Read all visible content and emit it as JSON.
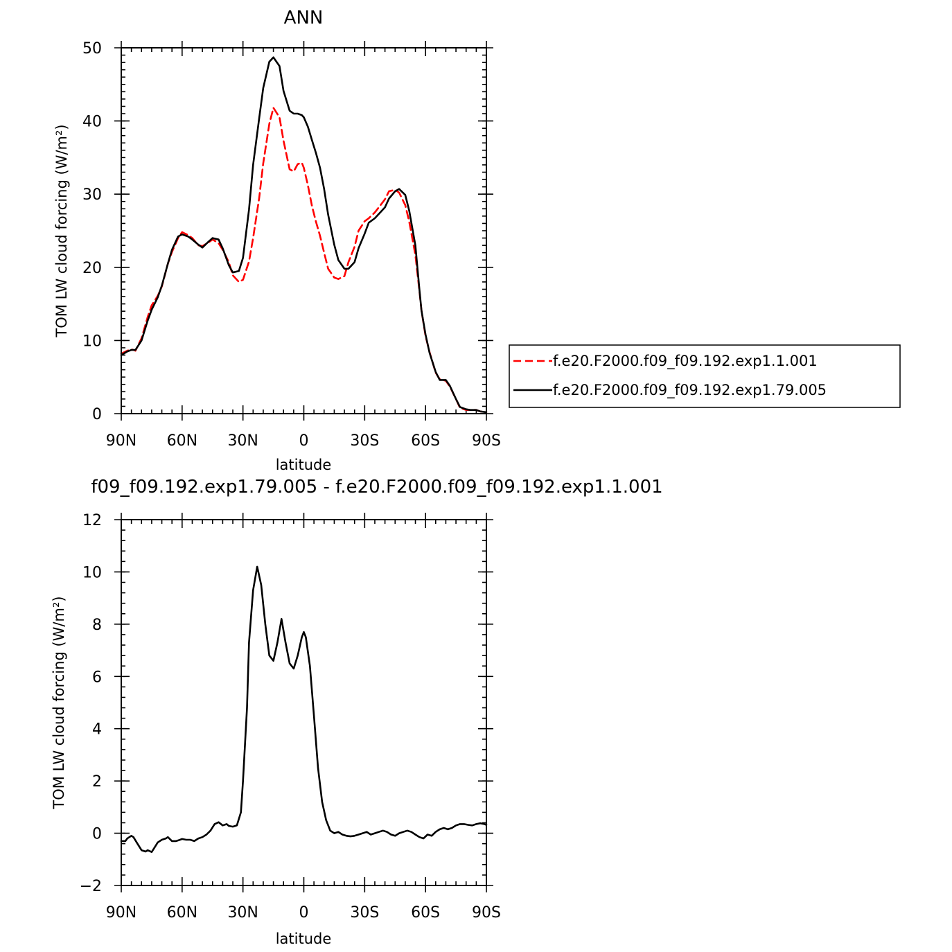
{
  "chart_data": [
    {
      "type": "line",
      "title": "ANN",
      "xlabel": "latitude",
      "ylabel": "TOM LW cloud forcing (W/m²)",
      "xlim": [
        90,
        -90
      ],
      "ylim": [
        0,
        50
      ],
      "x_ticks": [
        90,
        60,
        30,
        0,
        -30,
        -60,
        -90
      ],
      "x_tick_labels": [
        "90N",
        "60N",
        "30N",
        "0",
        "30S",
        "60S",
        "90S"
      ],
      "y_ticks": [
        0,
        10,
        20,
        30,
        40,
        50
      ],
      "y_tick_labels": [
        "0",
        "10",
        "20",
        "30",
        "40",
        "50"
      ],
      "grid": false,
      "legend_placement": "right",
      "series": [
        {
          "name": "f.e20.F2000.f09_f09.192.exp1.1.001",
          "color": "#ff0000",
          "style": "dashed",
          "x": [
            90,
            87,
            85,
            83,
            80,
            77,
            75,
            72,
            70,
            67,
            65,
            62,
            60,
            57,
            55,
            52,
            50,
            47,
            45,
            42,
            40,
            37,
            35,
            32,
            30,
            27,
            25,
            22,
            20,
            17,
            15,
            12,
            10,
            7,
            5,
            3,
            1,
            0,
            -2,
            -4,
            -6,
            -8,
            -10,
            -12,
            -15,
            -17,
            -20,
            -22,
            -25,
            -27,
            -30,
            -32,
            -35,
            -37,
            -40,
            -42,
            -45,
            -47,
            -50,
            -52,
            -55,
            -57,
            -58,
            -60,
            -62,
            -65,
            -67,
            -70,
            -72,
            -75,
            -77,
            -80,
            -82,
            -85,
            -87,
            -90
          ],
          "values": [
            8.2,
            8.6,
            8.8,
            8.6,
            10.3,
            13.2,
            14.8,
            16.1,
            17.4,
            20.5,
            22.1,
            24.0,
            24.8,
            24.4,
            24.0,
            23.0,
            22.9,
            23.4,
            23.8,
            23.3,
            22.4,
            20.7,
            18.9,
            18.0,
            18.3,
            20.8,
            24.0,
            29.5,
            34.2,
            39.6,
            41.8,
            40.5,
            37.3,
            33.4,
            33.1,
            34.1,
            34.3,
            33.6,
            31.2,
            28.4,
            26.2,
            24.3,
            22.0,
            19.8,
            18.6,
            18.4,
            18.8,
            20.7,
            22.8,
            25.0,
            26.3,
            26.7,
            27.5,
            28.2,
            29.3,
            30.4,
            30.6,
            30.2,
            28.5,
            26.2,
            21.7,
            16.7,
            14.1,
            10.6,
            8.4,
            5.6,
            4.7,
            4.5,
            3.7,
            2.0,
            0.8,
            0.5,
            0.5,
            0.5,
            0.3,
            0.2
          ]
        },
        {
          "name": "f.e20.F2000.f09_f09.192.exp1.79.005",
          "color": "#000000",
          "style": "solid",
          "x": [
            90,
            87,
            85,
            83,
            80,
            77,
            75,
            72,
            70,
            67,
            65,
            62,
            60,
            57,
            55,
            52,
            50,
            47,
            45,
            42,
            40,
            37,
            35,
            32,
            30,
            27,
            25,
            22,
            20,
            17,
            15,
            12,
            10,
            7,
            5,
            3,
            1,
            0,
            -2,
            -4,
            -6,
            -8,
            -10,
            -12,
            -15,
            -17,
            -20,
            -22,
            -25,
            -27,
            -30,
            -32,
            -35,
            -37,
            -40,
            -42,
            -45,
            -47,
            -50,
            -52,
            -55,
            -57,
            -58,
            -60,
            -62,
            -65,
            -67,
            -70,
            -72,
            -75,
            -77,
            -80,
            -82,
            -85,
            -87,
            -90
          ],
          "values": [
            8.0,
            8.5,
            8.7,
            8.7,
            10.0,
            12.7,
            14.2,
            15.9,
            17.5,
            20.5,
            22.4,
            24.2,
            24.5,
            24.2,
            23.8,
            23.1,
            22.7,
            23.5,
            24.0,
            23.8,
            22.6,
            20.3,
            19.3,
            19.5,
            21.3,
            27.9,
            34.0,
            40.4,
            44.5,
            48.1,
            48.7,
            47.5,
            44.1,
            41.4,
            41.0,
            41.0,
            40.8,
            40.5,
            39.2,
            37.4,
            35.6,
            33.6,
            30.7,
            27.2,
            23.1,
            21.0,
            19.8,
            19.8,
            20.7,
            22.6,
            24.6,
            26.1,
            26.7,
            27.3,
            28.2,
            29.4,
            30.4,
            30.7,
            29.9,
            27.7,
            23.0,
            16.9,
            14.1,
            10.8,
            8.3,
            5.7,
            4.6,
            4.6,
            3.8,
            2.0,
            0.9,
            0.6,
            0.5,
            0.5,
            0.3,
            0.2
          ]
        }
      ]
    },
    {
      "type": "line",
      "title": "f09_f09.192.exp1.79.005 - f.e20.F2000.f09_f09.192.exp1.1.001",
      "xlabel": "latitude",
      "ylabel": "TOM LW cloud forcing (W/m²)",
      "xlim": [
        90,
        -90
      ],
      "ylim": [
        -2,
        12
      ],
      "x_ticks": [
        90,
        60,
        30,
        0,
        -30,
        -60,
        -90
      ],
      "x_tick_labels": [
        "90N",
        "60N",
        "30N",
        "0",
        "30S",
        "60S",
        "90S"
      ],
      "y_ticks": [
        -2,
        0,
        2,
        4,
        6,
        8,
        10,
        12
      ],
      "y_tick_labels": [
        "−2",
        "0",
        "2",
        "4",
        "6",
        "8",
        "10",
        "12"
      ],
      "grid": false,
      "series": [
        {
          "color": "#000000",
          "style": "solid",
          "x": [
            90,
            88,
            87,
            85,
            84,
            82,
            80,
            78,
            77,
            75,
            74,
            72,
            70,
            68,
            67,
            65,
            63,
            61,
            60,
            58,
            56,
            54,
            52,
            50,
            48,
            46,
            44,
            42,
            40,
            38,
            37,
            35,
            33,
            31,
            30,
            28,
            27,
            25,
            23,
            21,
            19,
            17,
            15,
            13,
            11,
            9,
            7,
            5,
            3,
            1,
            0,
            -1,
            -3,
            -5,
            -7,
            -9,
            -11,
            -13,
            -15,
            -17,
            -19,
            -21,
            -23,
            -25,
            -27,
            -29,
            -31,
            -33,
            -35,
            -37,
            -39,
            -41,
            -43,
            -45,
            -47,
            -49,
            -51,
            -53,
            -55,
            -57,
            -59,
            -61,
            -63,
            -65,
            -67,
            -69,
            -71,
            -73,
            -75,
            -77,
            -79,
            -81,
            -83,
            -85,
            -87,
            -89,
            -90
          ],
          "values": [
            -0.3,
            -0.3,
            -0.2,
            -0.1,
            -0.15,
            -0.4,
            -0.65,
            -0.7,
            -0.65,
            -0.72,
            -0.6,
            -0.35,
            -0.25,
            -0.2,
            -0.15,
            -0.3,
            -0.3,
            -0.25,
            -0.22,
            -0.25,
            -0.25,
            -0.3,
            -0.2,
            -0.15,
            -0.05,
            0.1,
            0.35,
            0.42,
            0.3,
            0.35,
            0.28,
            0.25,
            0.3,
            0.8,
            2.0,
            4.8,
            7.3,
            9.3,
            10.2,
            9.5,
            8.0,
            6.8,
            6.6,
            7.3,
            8.2,
            7.3,
            6.5,
            6.3,
            6.8,
            7.5,
            7.7,
            7.5,
            6.4,
            4.5,
            2.5,
            1.2,
            0.5,
            0.1,
            0.0,
            0.05,
            -0.05,
            -0.1,
            -0.12,
            -0.1,
            -0.05,
            0.0,
            0.05,
            -0.05,
            0.0,
            0.05,
            0.1,
            0.05,
            -0.05,
            -0.1,
            0.0,
            0.05,
            0.1,
            0.05,
            -0.05,
            -0.15,
            -0.2,
            -0.05,
            -0.1,
            0.05,
            0.15,
            0.2,
            0.15,
            0.2,
            0.3,
            0.35,
            0.35,
            0.32,
            0.3,
            0.35,
            0.38,
            0.35,
            0.32
          ]
        }
      ]
    }
  ]
}
